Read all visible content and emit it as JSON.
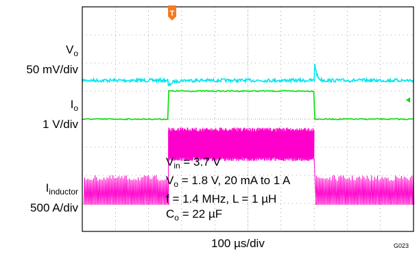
{
  "chart_data": {
    "type": "line",
    "subtype": "oscilloscope-capture",
    "timebase": "100 µs/div",
    "figure_id": "G023",
    "grid": true,
    "divisions": {
      "x": 10,
      "y": 8
    },
    "trigger_marker": "T",
    "channels": [
      {
        "name_main": "V",
        "name_sub": "o",
        "scale": "50 mV/div",
        "color": "#00e5f0",
        "description": "output voltage: steady, small dip at load step-up, small spike at load step-down"
      },
      {
        "name_main": "I",
        "name_sub": "o",
        "scale": "1 V/div",
        "color": "#00dd00",
        "description": "output current step from 20 mA to 1 A and back",
        "low_level_div": 1.0,
        "high_level_div": 2.0,
        "step_up_div": 2.6,
        "step_down_div": 7.0
      },
      {
        "name_main": "I",
        "name_sub": "inductor",
        "scale": "500 A/div",
        "color": "#ff00cc",
        "description": "inductor current: PFM burst pattern at light load, continuous PWM ripple at 1 A"
      }
    ],
    "conditions": [
      {
        "main": "V",
        "sub": "in",
        "rest": " = 3.7 V"
      },
      {
        "main": "V",
        "sub": "o",
        "rest": " = 1.8 V, 20 mA to 1 A"
      },
      {
        "main": "f = 1.4 MHz, L = 1 µH",
        "sub": "",
        "rest": ""
      },
      {
        "main": "C",
        "sub": "o",
        "rest": " = 22 µF"
      }
    ]
  }
}
